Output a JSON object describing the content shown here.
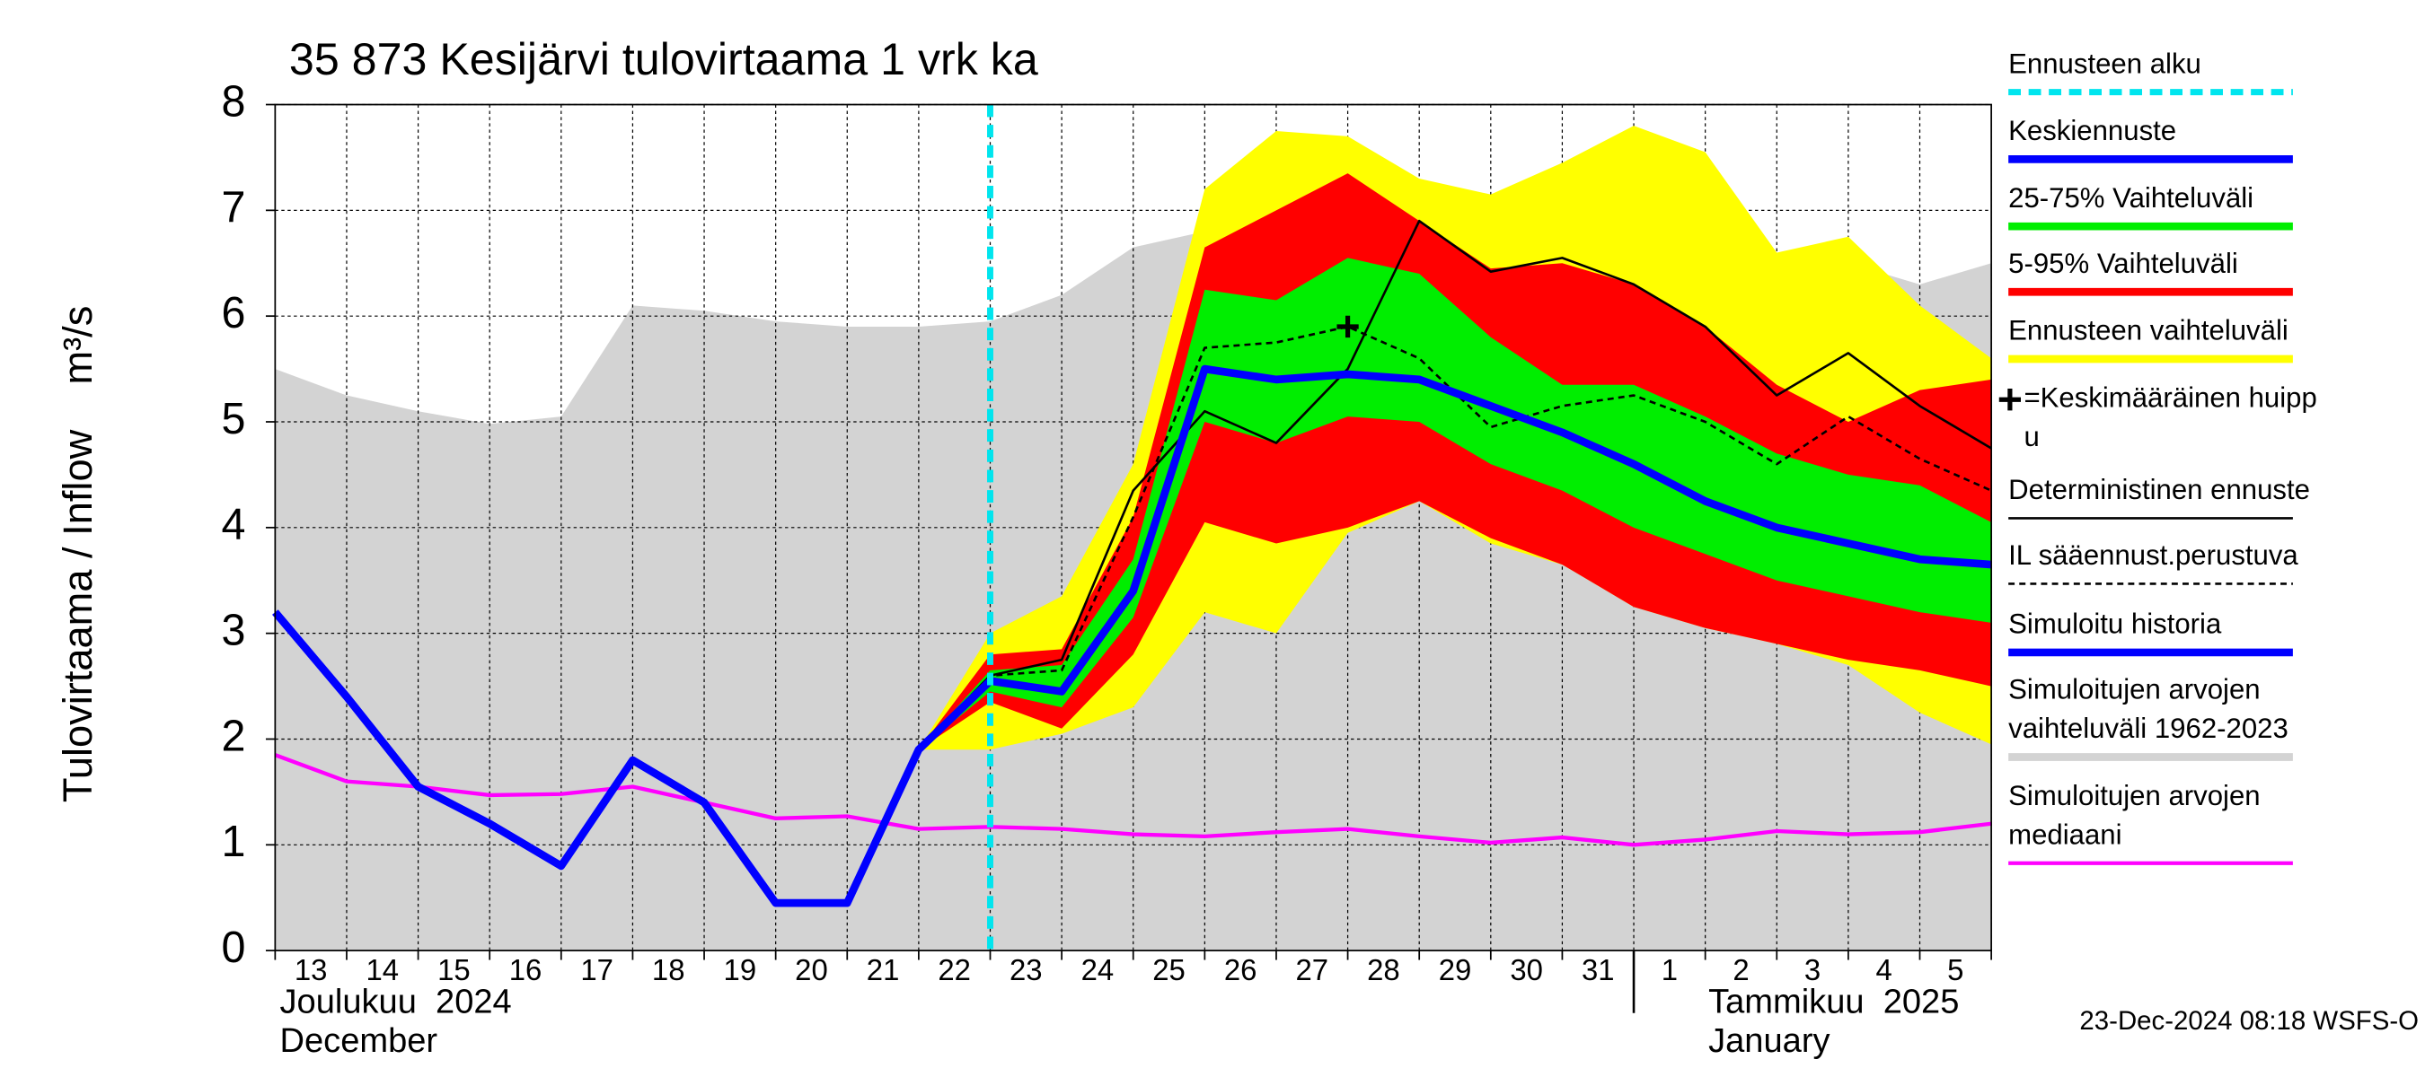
{
  "chart_data": {
    "type": "line",
    "title": "35 873 Kesijärvi tulovirtaama 1 vrk ka",
    "ylabel": "Tulovirtaama / Inflow    m³/s",
    "timestamp": "23-Dec-2024 08:18 WSFS-O",
    "x": [
      "2024-12-13",
      "2024-12-14",
      "2024-12-15",
      "2024-12-16",
      "2024-12-17",
      "2024-12-18",
      "2024-12-19",
      "2024-12-20",
      "2024-12-21",
      "2024-12-22",
      "2024-12-23",
      "2024-12-24",
      "2024-12-25",
      "2024-12-26",
      "2024-12-27",
      "2024-12-28",
      "2024-12-29",
      "2024-12-30",
      "2024-12-31",
      "2025-01-01",
      "2025-01-02",
      "2025-01-03",
      "2025-01-04",
      "2025-01-05",
      "2025-01-06"
    ],
    "day_labels": [
      "13",
      "14",
      "15",
      "16",
      "17",
      "18",
      "19",
      "20",
      "21",
      "22",
      "23",
      "24",
      "25",
      "26",
      "27",
      "28",
      "29",
      "30",
      "31",
      "1",
      "2",
      "3",
      "4",
      "5"
    ],
    "month_labels": [
      {
        "x": "2024-12-13",
        "lines": [
          "Joulukuu  2024",
          "December"
        ]
      },
      {
        "x": "2025-01-01",
        "lines": [
          "Tammikuu  2025",
          "January"
        ]
      }
    ],
    "ylim": [
      0,
      8
    ],
    "yticks": [
      0,
      1,
      2,
      3,
      4,
      5,
      6,
      7,
      8
    ],
    "grid": true,
    "series": [
      {
        "name": "Ennusteen alku",
        "kind": "vline",
        "x": "2024-12-23",
        "color": "#00e5ee",
        "legend_style": "dashed"
      },
      {
        "name": "Keskiennuste",
        "kind": "line",
        "color": "#0000ff",
        "legend_style": "thick",
        "values": [
          null,
          null,
          null,
          null,
          null,
          null,
          null,
          null,
          null,
          null,
          2.55,
          2.45,
          3.4,
          5.5,
          5.4,
          5.45,
          5.4,
          5.15,
          4.9,
          4.6,
          4.25,
          4.0,
          3.85,
          3.7,
          3.65
        ]
      },
      {
        "name": "25-75% Vaihteluväli",
        "kind": "band",
        "color": "#00ee00",
        "legend_style": "thick",
        "upper": [
          null,
          null,
          null,
          null,
          null,
          null,
          null,
          null,
          null,
          1.9,
          2.65,
          2.7,
          3.7,
          6.25,
          6.15,
          6.55,
          6.4,
          5.8,
          5.35,
          5.35,
          5.05,
          4.7,
          4.5,
          4.4,
          4.05
        ],
        "lower": [
          null,
          null,
          null,
          null,
          null,
          null,
          null,
          null,
          null,
          1.9,
          2.45,
          2.3,
          3.15,
          5.0,
          4.8,
          5.05,
          5.0,
          4.6,
          4.35,
          4.0,
          3.75,
          3.5,
          3.35,
          3.2,
          3.1
        ]
      },
      {
        "name": "5-95% Vaihteluväli",
        "kind": "band",
        "color": "#ff0000",
        "legend_style": "thick",
        "upper": [
          null,
          null,
          null,
          null,
          null,
          null,
          null,
          null,
          null,
          1.9,
          2.8,
          2.85,
          4.1,
          6.65,
          7.0,
          7.35,
          6.9,
          6.45,
          6.5,
          6.3,
          5.9,
          5.35,
          5.0,
          5.3,
          5.4
        ],
        "lower": [
          null,
          null,
          null,
          null,
          null,
          null,
          null,
          null,
          null,
          1.9,
          2.35,
          2.1,
          2.8,
          4.05,
          3.85,
          4.0,
          4.25,
          3.9,
          3.65,
          3.25,
          3.05,
          2.9,
          2.75,
          2.65,
          2.5
        ]
      },
      {
        "name": "Ennusteen vaihteluväli",
        "kind": "band",
        "color": "#ffff00",
        "legend_style": "thick",
        "upper": [
          null,
          null,
          null,
          null,
          null,
          null,
          null,
          null,
          null,
          1.9,
          3.0,
          3.35,
          4.6,
          7.2,
          7.75,
          7.7,
          7.3,
          7.15,
          7.45,
          7.8,
          7.55,
          6.6,
          6.75,
          6.1,
          5.6
        ],
        "lower": [
          null,
          null,
          null,
          null,
          null,
          null,
          null,
          null,
          null,
          1.9,
          1.9,
          2.05,
          2.3,
          3.2,
          3.0,
          3.95,
          4.25,
          3.85,
          3.65,
          3.25,
          3.05,
          2.9,
          2.7,
          2.25,
          1.95
        ]
      },
      {
        "name": [
          "=Keskimääräinen huipp",
          "u"
        ],
        "kind": "point",
        "color": "#000000",
        "legend_style": "marker",
        "x": "2024-12-28",
        "value": 5.9
      },
      {
        "name": "Deterministinen ennuste",
        "kind": "line",
        "color": "#000000",
        "legend_style": "thin",
        "values": [
          null,
          null,
          null,
          null,
          null,
          null,
          null,
          null,
          null,
          1.9,
          2.6,
          2.75,
          4.35,
          5.1,
          4.8,
          5.5,
          6.9,
          6.42,
          6.55,
          6.3,
          5.9,
          5.25,
          5.65,
          5.15,
          4.75
        ]
      },
      {
        "name": "IL sääennust.perustuva",
        "kind": "line",
        "color": "#000000",
        "legend_style": "dashed-thin",
        "values": [
          null,
          null,
          null,
          null,
          null,
          null,
          null,
          null,
          null,
          1.9,
          2.6,
          2.65,
          4.1,
          5.7,
          5.75,
          5.9,
          5.6,
          4.95,
          5.15,
          5.25,
          5.0,
          4.6,
          5.05,
          4.65,
          4.35
        ]
      },
      {
        "name": "Simuloitu historia",
        "kind": "line",
        "color": "#0000ff",
        "legend_style": "thick",
        "values": [
          3.2,
          2.4,
          1.55,
          1.2,
          0.8,
          1.8,
          1.4,
          0.45,
          0.45,
          1.9,
          2.55,
          null,
          null,
          null,
          null,
          null,
          null,
          null,
          null,
          null,
          null,
          null,
          null,
          null,
          null
        ]
      },
      {
        "name": [
          "Simuloitujen arvojen",
          "vaihteluväli 1962-2023"
        ],
        "kind": "band",
        "color": "#d3d3d3",
        "legend_style": "thick",
        "upper": [
          5.5,
          5.25,
          5.1,
          4.98,
          5.05,
          6.1,
          6.05,
          5.95,
          5.9,
          5.9,
          5.95,
          6.2,
          6.65,
          6.8,
          6.8,
          6.75,
          6.6,
          6.45,
          6.35,
          6.2,
          6.2,
          6.1,
          6.5,
          6.3,
          6.5
        ],
        "lower": [
          0,
          0,
          0,
          0,
          0,
          0,
          0,
          0,
          0,
          0,
          0,
          0,
          0,
          0,
          0,
          0,
          0,
          0,
          0,
          0,
          0,
          0,
          0,
          0,
          0
        ]
      },
      {
        "name": [
          "Simuloitujen arvojen",
          "mediaani"
        ],
        "kind": "line",
        "color": "#ff00ff",
        "legend_style": "medium",
        "values": [
          1.85,
          1.6,
          1.55,
          1.47,
          1.48,
          1.55,
          1.4,
          1.25,
          1.27,
          1.15,
          1.17,
          1.15,
          1.1,
          1.08,
          1.12,
          1.15,
          1.08,
          1.02,
          1.07,
          1.0,
          1.05,
          1.13,
          1.1,
          1.12,
          1.2
        ]
      }
    ]
  }
}
